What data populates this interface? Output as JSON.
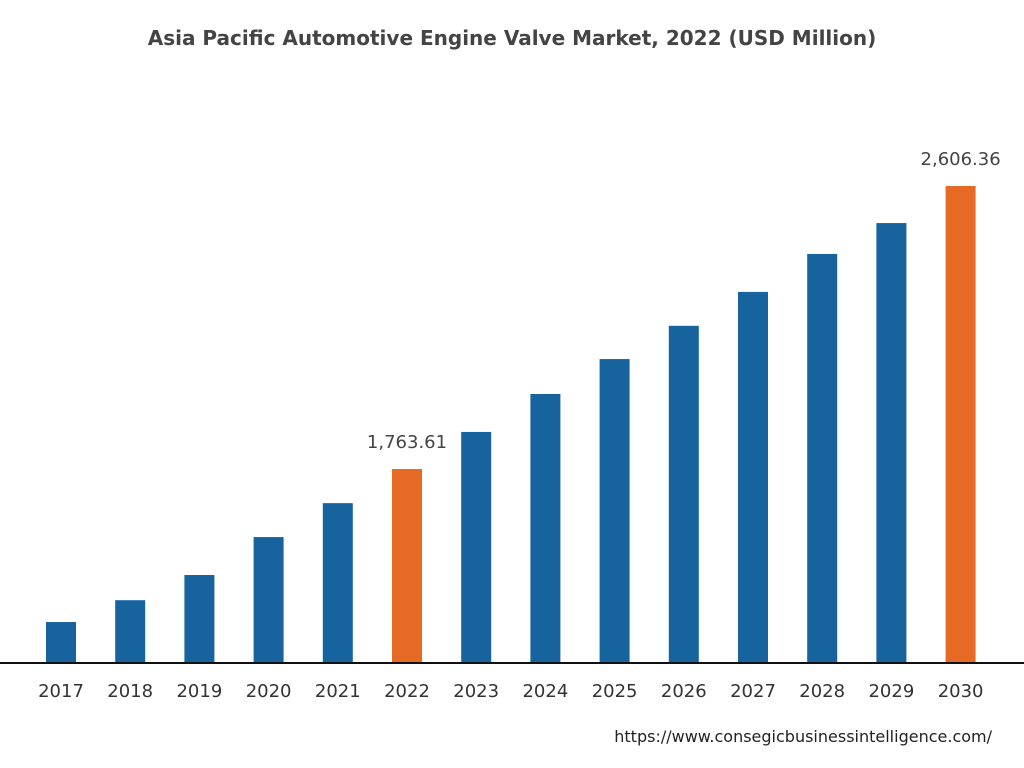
{
  "chart_data": {
    "type": "bar",
    "title": "Asia Pacific Automotive Engine Valve Market, 2022 (USD Million)",
    "categories": [
      "2017",
      "2018",
      "2019",
      "2020",
      "2021",
      "2022",
      "2023",
      "2024",
      "2025",
      "2026",
      "2027",
      "2028",
      "2029",
      "2030"
    ],
    "values": [
      1308,
      1373,
      1448,
      1561,
      1662,
      1763.61,
      1874,
      1987,
      2091,
      2190,
      2291,
      2404,
      2496,
      2606.36
    ],
    "data_labels": {
      "2022": "1,763.61",
      "2030": "2,606.36"
    },
    "highlight": [
      "2022",
      "2030"
    ],
    "xlabel": "",
    "ylabel": "",
    "ylim": [
      1186,
      2606.36
    ],
    "grid": false,
    "colors": {
      "default": "#17639e",
      "highlight": "#e56a25",
      "axis": "#111111"
    }
  },
  "footer": {
    "url": "https://www.consegicbusinessintelligence.com/"
  }
}
